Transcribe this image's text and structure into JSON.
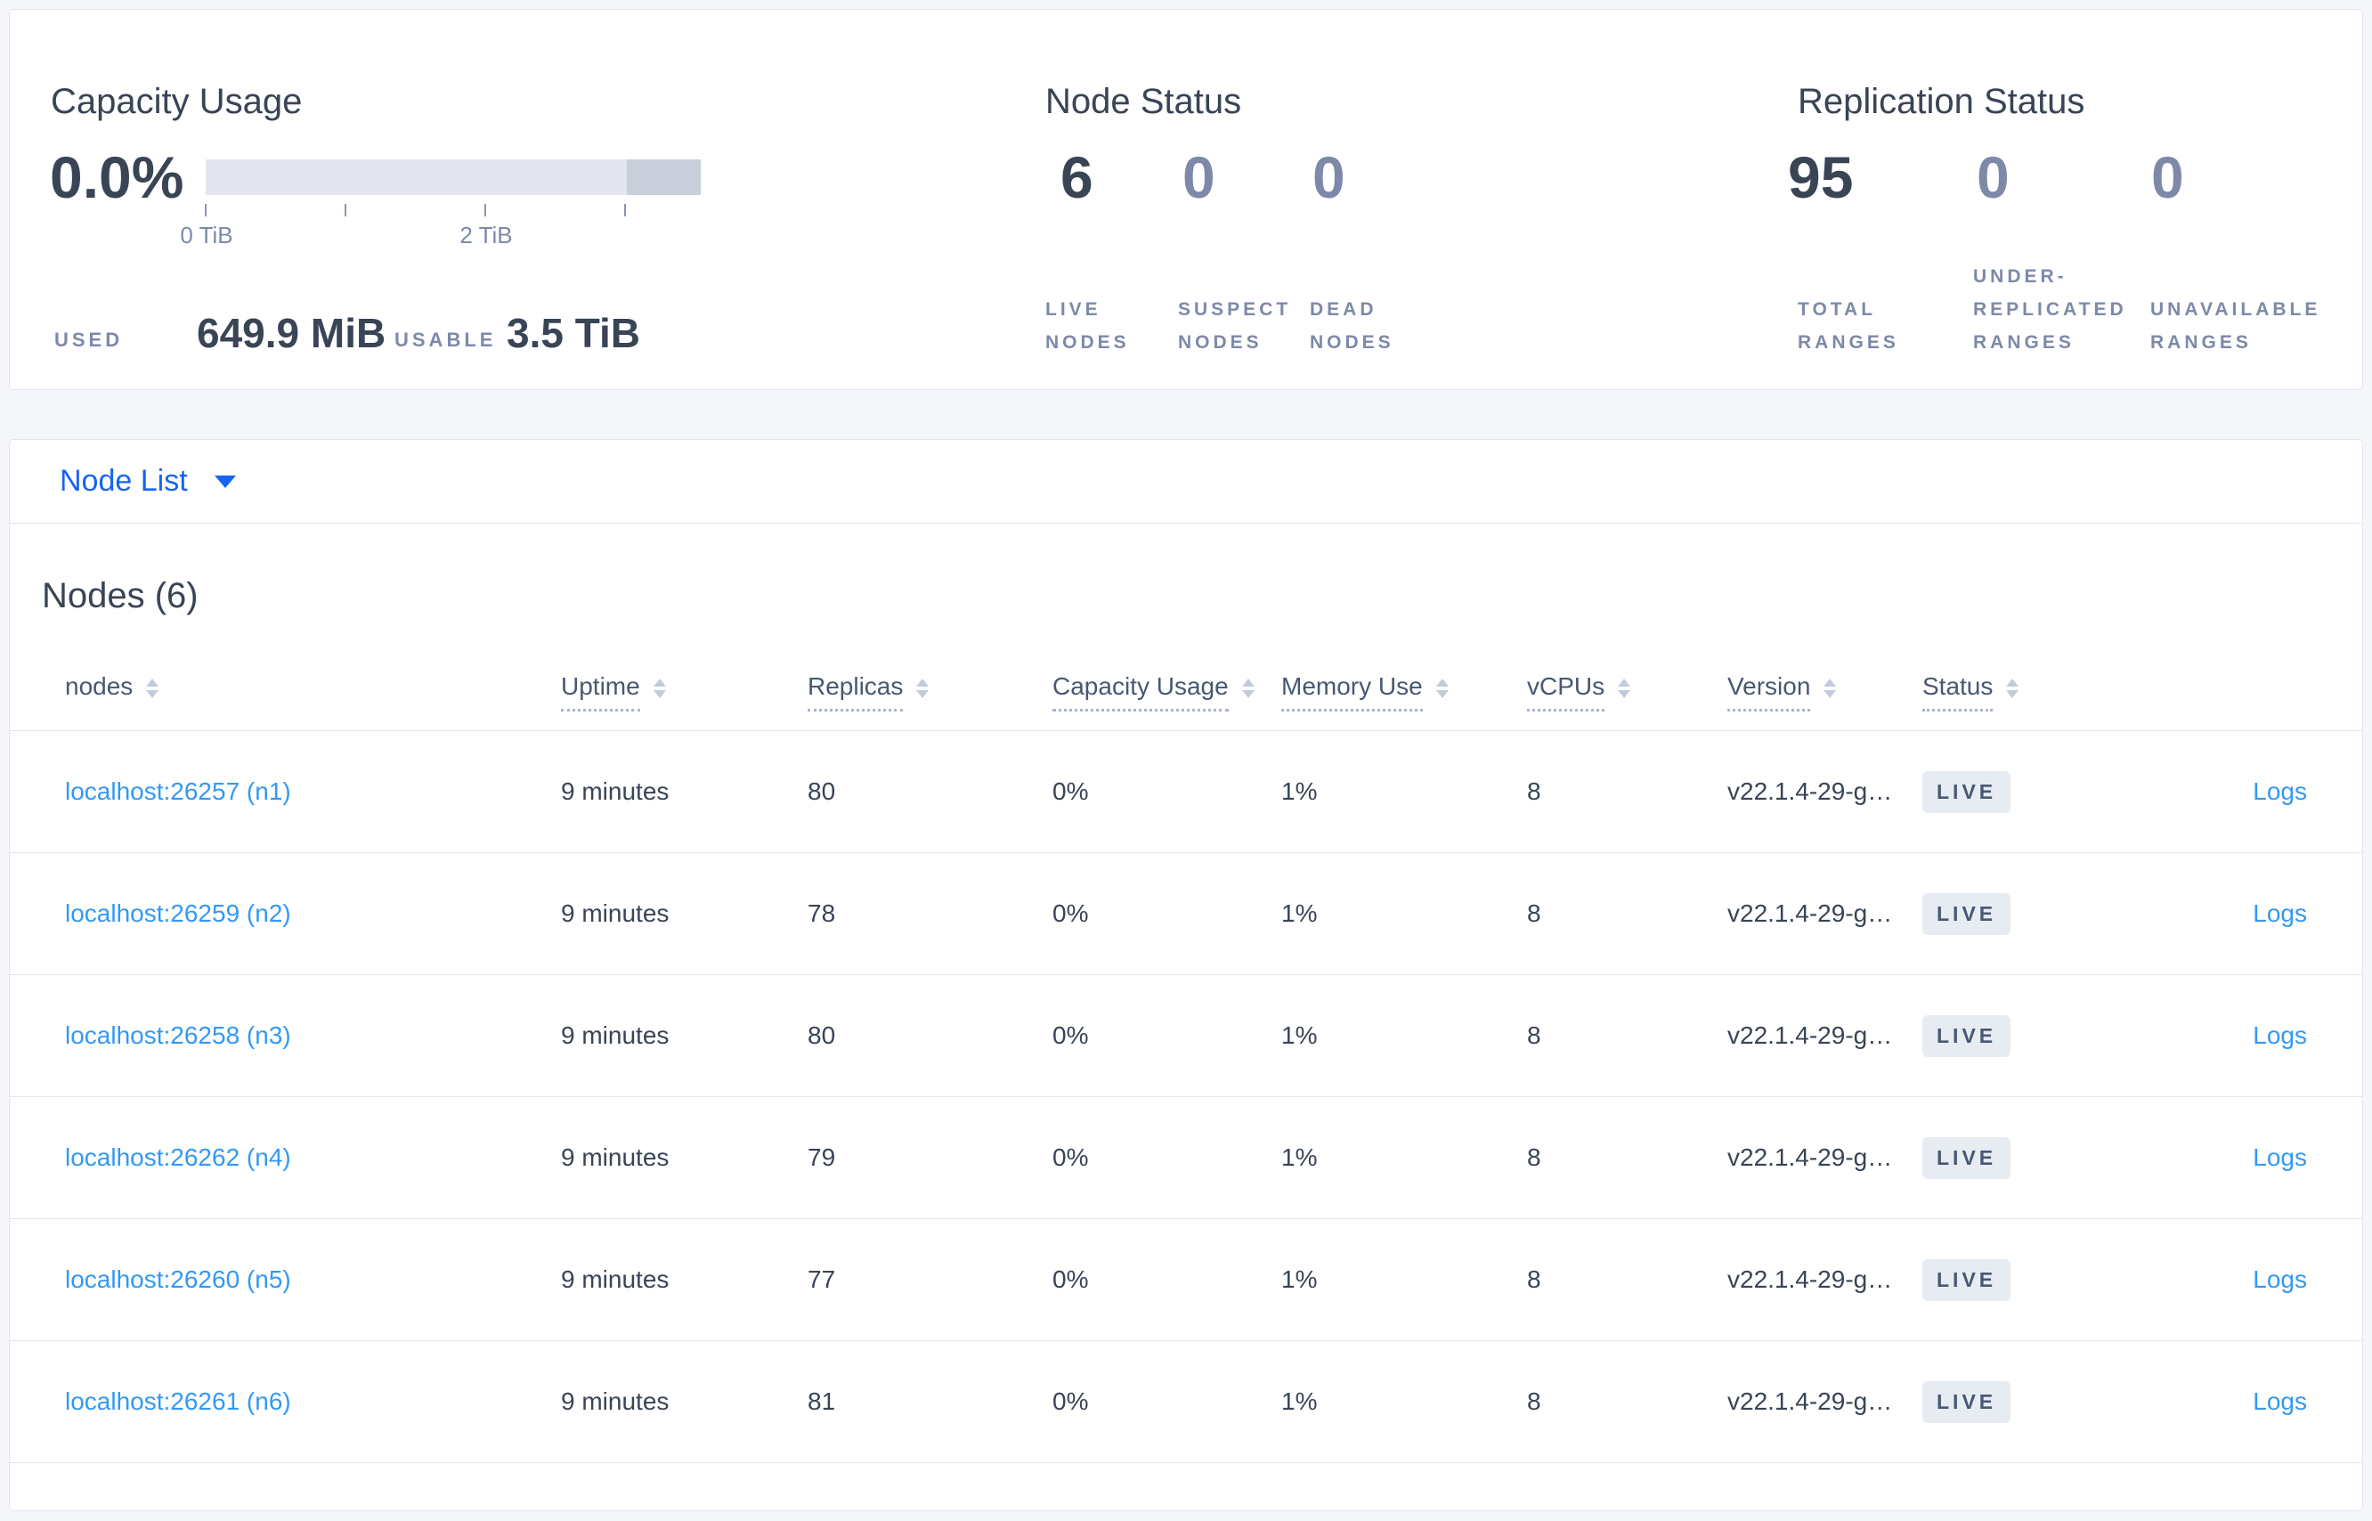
{
  "colors": {
    "page_background": "#f4f6fa",
    "card_background": "#ffffff",
    "card_border": "#e2e7ef",
    "text_primary": "#394455",
    "text_muted": "#7e89a9",
    "link_blue": "#3399f3",
    "dropdown_blue": "#1864f2",
    "badge_background": "#e7ecf3",
    "badge_text": "#475872",
    "bar_track": "#e3e6ee",
    "bar_end_segment": "#c9cedb",
    "sort_arrow": "#c3cad9"
  },
  "summary": {
    "capacity": {
      "title": "Capacity Usage",
      "percent": "0.0%",
      "bar": {
        "used_percent": 0,
        "end_segment_start_percent": 85
      },
      "tick_labels": [
        "0 TiB",
        "2 TiB"
      ],
      "used_label": "USED",
      "used_value": "649.9 MiB",
      "usable_label": "USABLE",
      "usable_value": "3.5 TiB"
    },
    "node_status": {
      "title": "Node Status",
      "stats": [
        {
          "value": "6",
          "label_lines": [
            "LIVE",
            "NODES"
          ]
        },
        {
          "value": "0",
          "label_lines": [
            "SUSPECT",
            "NODES"
          ]
        },
        {
          "value": "0",
          "label_lines": [
            "DEAD",
            "NODES"
          ]
        }
      ]
    },
    "replication": {
      "title": "Replication Status",
      "stats": [
        {
          "value": "95",
          "label_lines": [
            "TOTAL",
            "RANGES"
          ]
        },
        {
          "value": "0",
          "label_lines": [
            "UNDER-",
            "REPLICATED",
            "RANGES"
          ]
        },
        {
          "value": "0",
          "label_lines": [
            "UNAVAILABLE",
            "RANGES"
          ]
        }
      ]
    }
  },
  "view_selector": {
    "label": "Node List"
  },
  "nodes_panel": {
    "title": "Nodes (6)",
    "columns": [
      {
        "label": "nodes",
        "has_tooltip": false
      },
      {
        "label": "Uptime",
        "has_tooltip": true
      },
      {
        "label": "Replicas",
        "has_tooltip": true
      },
      {
        "label": "Capacity Usage",
        "has_tooltip": true
      },
      {
        "label": "Memory Use",
        "has_tooltip": true
      },
      {
        "label": "vCPUs",
        "has_tooltip": true
      },
      {
        "label": "Version",
        "has_tooltip": true
      },
      {
        "label": "Status",
        "has_tooltip": true
      },
      {
        "label": ""
      }
    ],
    "rows": [
      {
        "node": "localhost:26257 (n1)",
        "uptime": "9 minutes",
        "replicas": "80",
        "capacity_usage": "0%",
        "memory_use": "1%",
        "vcpus": "8",
        "version": "v22.1.4-29-g…",
        "status": "LIVE",
        "logs_label": "Logs"
      },
      {
        "node": "localhost:26259 (n2)",
        "uptime": "9 minutes",
        "replicas": "78",
        "capacity_usage": "0%",
        "memory_use": "1%",
        "vcpus": "8",
        "version": "v22.1.4-29-g…",
        "status": "LIVE",
        "logs_label": "Logs"
      },
      {
        "node": "localhost:26258 (n3)",
        "uptime": "9 minutes",
        "replicas": "80",
        "capacity_usage": "0%",
        "memory_use": "1%",
        "vcpus": "8",
        "version": "v22.1.4-29-g…",
        "status": "LIVE",
        "logs_label": "Logs"
      },
      {
        "node": "localhost:26262 (n4)",
        "uptime": "9 minutes",
        "replicas": "79",
        "capacity_usage": "0%",
        "memory_use": "1%",
        "vcpus": "8",
        "version": "v22.1.4-29-g…",
        "status": "LIVE",
        "logs_label": "Logs"
      },
      {
        "node": "localhost:26260 (n5)",
        "uptime": "9 minutes",
        "replicas": "77",
        "capacity_usage": "0%",
        "memory_use": "1%",
        "vcpus": "8",
        "version": "v22.1.4-29-g…",
        "status": "LIVE",
        "logs_label": "Logs"
      },
      {
        "node": "localhost:26261 (n6)",
        "uptime": "9 minutes",
        "replicas": "81",
        "capacity_usage": "0%",
        "memory_use": "1%",
        "vcpus": "8",
        "version": "v22.1.4-29-g…",
        "status": "LIVE",
        "logs_label": "Logs"
      }
    ]
  }
}
